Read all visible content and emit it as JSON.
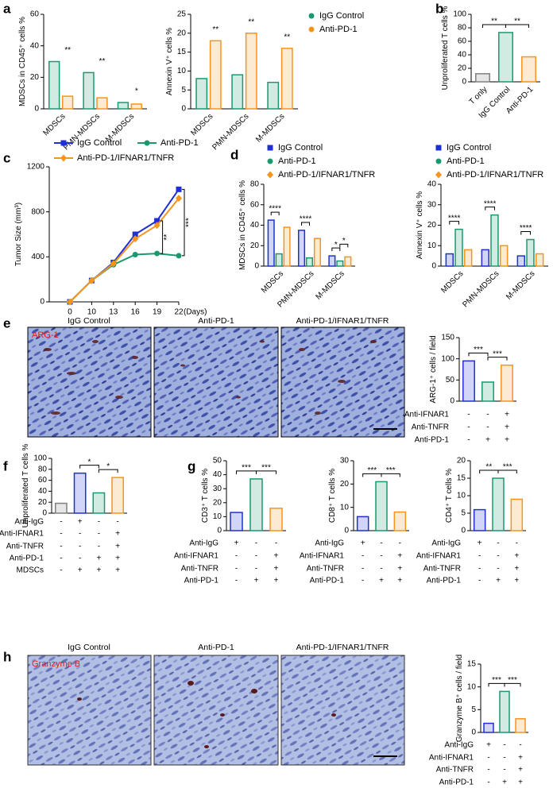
{
  "images": [
    {
      "stain": "ARG-1",
      "titles": [
        "IgG Control",
        "Anti-PD-1",
        "Anti-PD-1/IFNAR1/TNFR"
      ]
    },
    {
      "stain": "Granzyme B",
      "titles": [
        "IgG Control",
        "Anti-PD-1",
        "Anti-PD-1/IFNAR1/TNFR"
      ]
    }
  ],
  "chart_data": [
    {
      "type": "bar",
      "panel": "a",
      "y_label": "MDSCs in CD45⁺ cells %",
      "categories": [
        "MDSCs",
        "PMN-MDSCs",
        "M-MDSCs"
      ],
      "series": [
        {
          "color": "#1a9a6c",
          "values": [
            30,
            23,
            4
          ]
        },
        {
          "color": "#f7941d",
          "values": [
            8,
            7,
            3
          ]
        }
      ],
      "ylim": [
        0,
        60
      ],
      "yticks": [
        0,
        20,
        40,
        60
      ],
      "annotations": [
        "**",
        "**",
        "*"
      ]
    },
    {
      "type": "bar",
      "y_label": "Annexin V⁺ cells %",
      "categories": [
        "MDSCs",
        "PMN-MDSCs",
        "M-MDSCs"
      ],
      "series": [
        {
          "name": "IgG Control",
          "color": "#1a9a6c",
          "values": [
            8,
            9,
            7
          ]
        },
        {
          "name": "Anti-PD-1",
          "color": "#f7941d",
          "values": [
            18,
            20,
            16
          ]
        }
      ],
      "ylim": [
        0,
        25
      ],
      "yticks": [
        0,
        5,
        10,
        15,
        20,
        25
      ],
      "annotations": [
        "**",
        "**",
        "**"
      ]
    },
    {
      "type": "bar",
      "panel": "b",
      "y_label": "Unproliferated T cells %",
      "categories": [
        "T only",
        "IgG Control",
        "Anti-PD-1"
      ],
      "values": [
        12,
        73,
        37
      ],
      "colors": [
        "#808080",
        "#1a9a6c",
        "#f7941d"
      ],
      "ylim": [
        0,
        100
      ],
      "yticks": [
        0,
        20,
        40,
        60,
        80,
        100
      ],
      "annotations": [
        "**",
        "**"
      ]
    },
    {
      "type": "line",
      "panel": "c",
      "y_label": "Tumor Size (mm³)",
      "x_label": "(Days)",
      "categories": [
        "0",
        "10",
        "13",
        "16",
        "19",
        "22"
      ],
      "series": [
        {
          "name": "IgG Control",
          "color": "#1f2fd6",
          "values": [
            0,
            190,
            350,
            600,
            720,
            1000
          ]
        },
        {
          "name": "Anti-PD-1",
          "color": "#1a9a6c",
          "values": [
            0,
            190,
            330,
            420,
            430,
            410
          ]
        },
        {
          "name": "Anti-PD-1/IFNAR1/TNFR",
          "color": "#f7941d",
          "values": [
            0,
            190,
            340,
            560,
            680,
            920
          ]
        }
      ],
      "ylim": [
        0,
        1200
      ],
      "yticks": [
        0,
        400,
        800,
        1200
      ],
      "annotations": [
        "**",
        "***"
      ]
    },
    {
      "type": "bar",
      "panel": "d",
      "y_label": "MDSCs in CD45⁺ cells %",
      "categories": [
        "MDSCs",
        "PMN-MDSCs",
        "M-MDSCs"
      ],
      "series": [
        {
          "name": "IgG Control",
          "color": "#1f2fd6",
          "values": [
            45,
            35,
            10
          ]
        },
        {
          "name": "Anti-PD-1",
          "color": "#1a9a6c",
          "values": [
            12,
            8,
            5
          ]
        },
        {
          "name": "Anti-PD-1/IFNAR1/TNFR",
          "color": "#f7941d",
          "values": [
            38,
            27,
            9
          ]
        }
      ],
      "ylim": [
        0,
        80
      ],
      "yticks": [
        0,
        20,
        40,
        60,
        80
      ],
      "annotations": [
        "****",
        "****",
        "*",
        "*"
      ]
    },
    {
      "type": "bar",
      "y_label": "Annexin V⁺ cells %",
      "categories": [
        "MDSCs",
        "PMN-MDSCs",
        "M-MDSCs"
      ],
      "series": [
        {
          "name": "IgG Control",
          "color": "#1f2fd6",
          "values": [
            6,
            8,
            5
          ]
        },
        {
          "name": "Anti-PD-1",
          "color": "#1a9a6c",
          "values": [
            18,
            25,
            13
          ]
        },
        {
          "name": "Anti-PD-1/IFNAR1/TNFR",
          "color": "#f7941d",
          "values": [
            8,
            10,
            6
          ]
        }
      ],
      "ylim": [
        0,
        40
      ],
      "yticks": [
        0,
        10,
        20,
        30,
        40
      ],
      "annotations": [
        "****",
        "****",
        "****"
      ]
    },
    {
      "type": "bar",
      "panel": "e",
      "y_label": "ARG-1⁺ cells / field",
      "values": [
        95,
        45,
        85
      ],
      "colors": [
        "#1f2fd6",
        "#1a9a6c",
        "#f7941d"
      ],
      "ylim": [
        0,
        150
      ],
      "yticks": [
        0,
        50,
        100,
        150
      ],
      "annotations": [
        "***",
        "***"
      ],
      "conditions": [
        {
          "label": "Anti-IFNAR1",
          "values": [
            "-",
            "-",
            "+"
          ]
        },
        {
          "label": "Anti-TNFR",
          "values": [
            "-",
            "-",
            "+"
          ]
        },
        {
          "label": "Anti-PD-1",
          "values": [
            "-",
            "+",
            "+"
          ]
        }
      ]
    },
    {
      "type": "bar",
      "panel": "f",
      "y_label": "Unproliferated T cells %",
      "values": [
        18,
        73,
        37,
        65
      ],
      "colors": [
        "#808080",
        "#1f2fd6",
        "#1a9a6c",
        "#f7941d"
      ],
      "ylim": [
        0,
        100
      ],
      "yticks": [
        0,
        20,
        40,
        60,
        80,
        100
      ],
      "annotations": [
        "*",
        "*"
      ],
      "conditions": [
        {
          "label": "Anti-IgG",
          "values": [
            "-",
            "+",
            "-",
            "-"
          ]
        },
        {
          "label": "Anti-IFNAR1",
          "values": [
            "-",
            "-",
            "-",
            "+"
          ]
        },
        {
          "label": "Anti-TNFR",
          "values": [
            "-",
            "-",
            "-",
            "+"
          ]
        },
        {
          "label": "Anti-PD-1",
          "values": [
            "-",
            "-",
            "+",
            "+"
          ]
        },
        {
          "label": "MDSCs",
          "values": [
            "-",
            "+",
            "+",
            "+"
          ]
        }
      ]
    },
    {
      "type": "bar",
      "panel": "g",
      "y_label": "CD3⁺ T cells %",
      "values": [
        13,
        37,
        16
      ],
      "colors": [
        "#1f2fd6",
        "#1a9a6c",
        "#f7941d"
      ],
      "ylim": [
        0,
        50
      ],
      "yticks": [
        0,
        10,
        20,
        30,
        40,
        50
      ],
      "annotations": [
        "***",
        "***"
      ],
      "conditions": [
        {
          "label": "Anti-IgG",
          "values": [
            "+",
            "-",
            "-"
          ]
        },
        {
          "label": "Anti-IFNAR1",
          "values": [
            "-",
            "-",
            "+"
          ]
        },
        {
          "label": "Anti-TNFR",
          "values": [
            "-",
            "-",
            "+"
          ]
        },
        {
          "label": "Anti-PD-1",
          "values": [
            "-",
            "+",
            "+"
          ]
        }
      ]
    },
    {
      "type": "bar",
      "y_label": "CD8⁺ T cells %",
      "values": [
        6,
        21,
        8
      ],
      "colors": [
        "#1f2fd6",
        "#1a9a6c",
        "#f7941d"
      ],
      "ylim": [
        0,
        30
      ],
      "yticks": [
        0,
        10,
        20,
        30
      ],
      "annotations": [
        "***",
        "***"
      ],
      "conditions": [
        {
          "label": "Anti-IgG",
          "values": [
            "+",
            "-",
            "-"
          ]
        },
        {
          "label": "Anti-IFNAR1",
          "values": [
            "-",
            "-",
            "+"
          ]
        },
        {
          "label": "Anti-TNFR",
          "values": [
            "-",
            "-",
            "+"
          ]
        },
        {
          "label": "Anti-PD-1",
          "values": [
            "-",
            "+",
            "+"
          ]
        }
      ]
    },
    {
      "type": "bar",
      "y_label": "CD4⁺ T cells %",
      "values": [
        6,
        15,
        9
      ],
      "colors": [
        "#1f2fd6",
        "#1a9a6c",
        "#f7941d"
      ],
      "ylim": [
        0,
        20
      ],
      "yticks": [
        0,
        5,
        10,
        15,
        20
      ],
      "annotations": [
        "**",
        "***"
      ],
      "conditions": [
        {
          "label": "Anti-IgG",
          "values": [
            "+",
            "-",
            "-"
          ]
        },
        {
          "label": "Anti-IFNAR1",
          "values": [
            "-",
            "-",
            "+"
          ]
        },
        {
          "label": "Anti-TNFR",
          "values": [
            "-",
            "-",
            "+"
          ]
        },
        {
          "label": "Anti-PD-1",
          "values": [
            "-",
            "+",
            "+"
          ]
        }
      ]
    },
    {
      "type": "bar",
      "panel": "h",
      "y_label": "Granzyme B⁺ cells / field",
      "values": [
        2,
        9,
        3
      ],
      "colors": [
        "#1f2fd6",
        "#1a9a6c",
        "#f7941d"
      ],
      "ylim": [
        0,
        15
      ],
      "yticks": [
        0,
        5,
        10,
        15
      ],
      "annotations": [
        "***",
        "***"
      ],
      "conditions": [
        {
          "label": "Anti-IgG",
          "values": [
            "+",
            "-",
            "-"
          ]
        },
        {
          "label": "Anti-IFNAR1",
          "values": [
            "-",
            "-",
            "+"
          ]
        },
        {
          "label": "Anti-TNFR",
          "values": [
            "-",
            "-",
            "+"
          ]
        },
        {
          "label": "Anti-PD-1",
          "values": [
            "-",
            "+",
            "+"
          ]
        }
      ]
    }
  ]
}
